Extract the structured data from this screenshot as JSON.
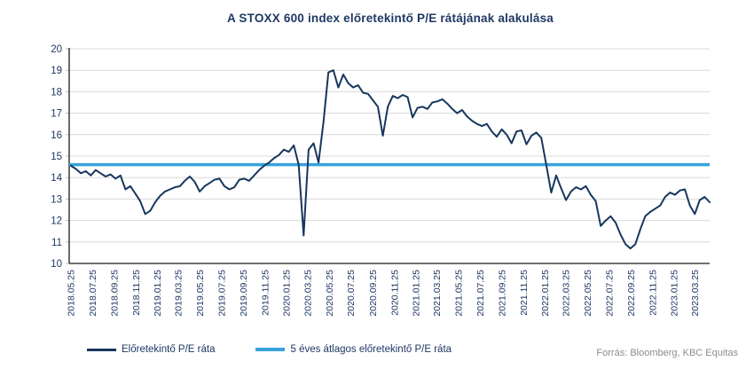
{
  "chart_data": {
    "type": "line",
    "title": "A STOXX 600 index előretekintő P/E rátájának alakulása",
    "xlabel": "",
    "ylabel": "",
    "ylim": [
      10,
      20
    ],
    "y_ticks": [
      10,
      11,
      12,
      13,
      14,
      15,
      16,
      17,
      18,
      19,
      20
    ],
    "grid": "horizontal",
    "legend_position": "bottom-left",
    "x_tick_labels": [
      "2018.05.25",
      "2018.07.25",
      "2018.09.25",
      "2018.11.25",
      "2019.01.25",
      "2019.03.25",
      "2019.05.25",
      "2019.07.25",
      "2019.09.25",
      "2019.11.25",
      "2020.01.25",
      "2020.03.25",
      "2020.05.25",
      "2020.07.25",
      "2020.09.25",
      "2020.11.25",
      "2021.01.25",
      "2021.03.25",
      "2021.05.25",
      "2021.07.25",
      "2021.09.25",
      "2021.11.25",
      "2022.01.25",
      "2022.03.25",
      "2022.05.25",
      "2022.07.25",
      "2022.09.25",
      "2022.11.25",
      "2023.01.25",
      "2023.03.25"
    ],
    "series": [
      {
        "name": "Előretekintő P/E ráta",
        "color": "#17375E",
        "start_date": "2018-05-25",
        "interval_days": 14,
        "values": [
          14.55,
          14.4,
          14.2,
          14.3,
          14.1,
          14.35,
          14.2,
          14.05,
          14.15,
          13.95,
          14.1,
          13.45,
          13.6,
          13.25,
          12.9,
          12.3,
          12.45,
          12.85,
          13.15,
          13.35,
          13.45,
          13.55,
          13.6,
          13.85,
          14.05,
          13.8,
          13.35,
          13.6,
          13.75,
          13.9,
          13.95,
          13.6,
          13.45,
          13.55,
          13.9,
          13.95,
          13.85,
          14.1,
          14.35,
          14.55,
          14.7,
          14.9,
          15.05,
          15.3,
          15.2,
          15.5,
          14.6,
          11.3,
          15.3,
          15.6,
          14.7,
          16.6,
          18.9,
          19.0,
          18.2,
          18.8,
          18.4,
          18.2,
          18.3,
          17.95,
          17.9,
          17.6,
          17.3,
          15.95,
          17.3,
          17.8,
          17.7,
          17.85,
          17.75,
          16.8,
          17.25,
          17.3,
          17.2,
          17.5,
          17.55,
          17.65,
          17.45,
          17.2,
          17.0,
          17.15,
          16.85,
          16.65,
          16.5,
          16.4,
          16.5,
          16.15,
          15.9,
          16.25,
          16.0,
          15.6,
          16.15,
          16.2,
          15.55,
          15.95,
          16.1,
          15.85,
          14.6,
          13.3,
          14.1,
          13.5,
          12.95,
          13.35,
          13.55,
          13.45,
          13.6,
          13.2,
          12.9,
          11.75,
          12.0,
          12.2,
          11.9,
          11.35,
          10.9,
          10.7,
          10.9,
          11.6,
          12.2,
          12.4,
          12.55,
          12.7,
          13.1,
          13.3,
          13.2,
          13.4,
          13.45,
          12.7,
          12.3,
          12.95,
          13.1,
          12.85
        ]
      },
      {
        "name": "5 éves átlagos előretekintő P/E ráta",
        "color": "#35A3DA",
        "constant_value": 14.6
      }
    ],
    "grid_color": "#D9D9D9",
    "minor_tick_color": "#BFBFBF",
    "axis_color": "#1A1A1A",
    "tick_label_color": "#1F3864"
  },
  "title_color": "#1F3864",
  "source_text": "Forrás: Bloomberg,  KBC Equitas",
  "source_color": "#8C8C8C"
}
